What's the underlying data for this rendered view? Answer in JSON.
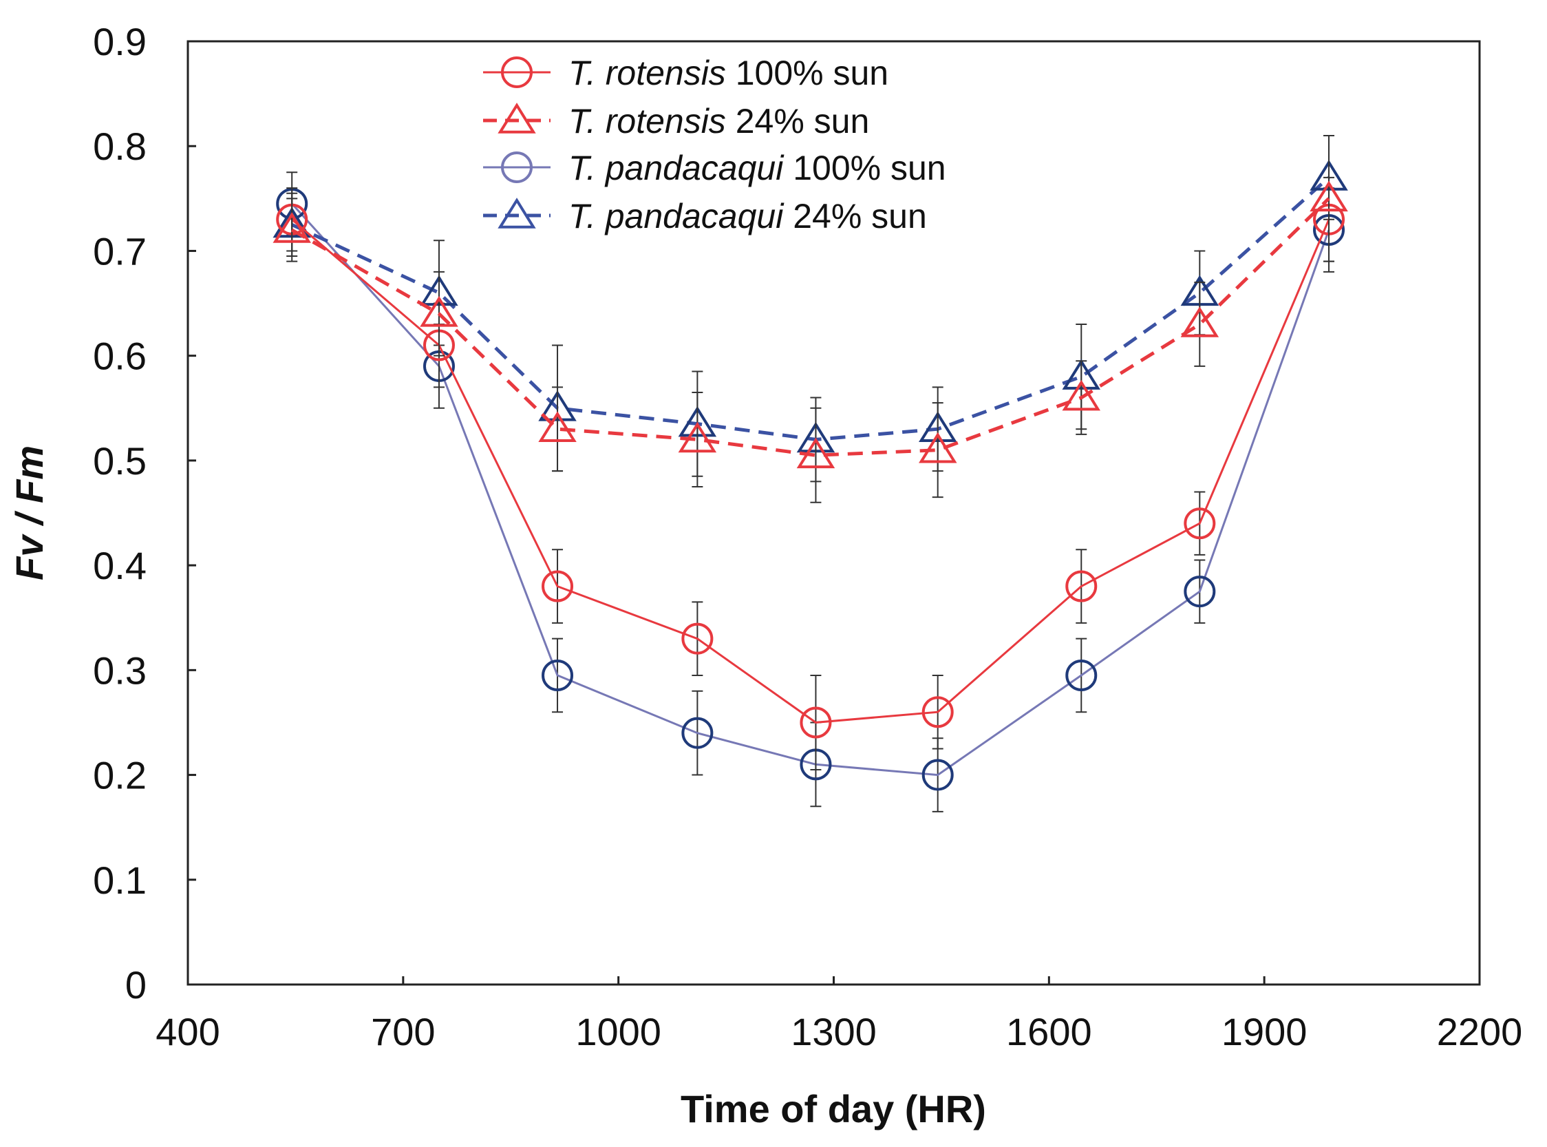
{
  "chart_data": {
    "type": "line",
    "title": "",
    "xlabel": "Time of day (HR)",
    "ylabel": "Fv / Fm",
    "xlim": [
      400,
      2200
    ],
    "ylim": [
      0,
      0.9
    ],
    "x_ticks": [
      "400",
      "700",
      "1000",
      "1300",
      "1600",
      "1900",
      "2200"
    ],
    "y_ticks": [
      "0",
      "0.1",
      "0.2",
      "0.3",
      "0.4",
      "0.5",
      "0.6",
      "0.7",
      "0.8",
      "0.9"
    ],
    "x_tick_values": [
      400,
      700,
      1000,
      1300,
      1600,
      1900,
      2200
    ],
    "y_tick_values": [
      0,
      0.1,
      0.2,
      0.3,
      0.4,
      0.5,
      0.6,
      0.7,
      0.8,
      0.9
    ],
    "grid": false,
    "legend_position": "top-center",
    "x": [
      545,
      750,
      915,
      1110,
      1275,
      1445,
      1645,
      1810,
      1990
    ],
    "series": [
      {
        "name": "T. rotensis 100% sun",
        "species": "T. rotensis",
        "treatment": "100% sun",
        "color": "#e8393f",
        "dash": "solid",
        "marker": "circle",
        "values": [
          0.73,
          0.61,
          0.38,
          0.33,
          0.25,
          0.26,
          0.38,
          0.44,
          0.73
        ],
        "errors": [
          0.03,
          0.04,
          0.035,
          0.035,
          0.045,
          0.035,
          0.035,
          0.03,
          0.04
        ]
      },
      {
        "name": "T. rotensis 24% sun",
        "species": "T. rotensis",
        "treatment": "24% sun",
        "color": "#e8393f",
        "dash": "dashed",
        "marker": "triangle",
        "values": [
          0.72,
          0.64,
          0.53,
          0.52,
          0.505,
          0.51,
          0.56,
          0.63,
          0.75
        ],
        "errors": [
          0.03,
          0.04,
          0.04,
          0.045,
          0.045,
          0.045,
          0.035,
          0.04,
          0.06
        ]
      },
      {
        "name": "T. pandacaqui 100% sun",
        "species": "T. pandacaqui",
        "treatment": "100% sun",
        "color": "#7678b5",
        "marker_color": "#1f3a7a",
        "dash": "solid",
        "marker": "circle",
        "values": [
          0.745,
          0.59,
          0.295,
          0.24,
          0.21,
          0.2,
          0.295,
          0.375,
          0.72
        ],
        "errors": [
          0.03,
          0.04,
          0.035,
          0.04,
          0.04,
          0.035,
          0.035,
          0.03,
          0.04
        ]
      },
      {
        "name": "T. pandacaqui 24% sun",
        "species": "T. pandacaqui",
        "treatment": "24% sun",
        "color": "#3b52a3",
        "marker_color": "#1f3a7a",
        "dash": "dashed",
        "marker": "triangle",
        "values": [
          0.725,
          0.66,
          0.55,
          0.535,
          0.52,
          0.53,
          0.58,
          0.66,
          0.77
        ],
        "errors": [
          0.03,
          0.05,
          0.06,
          0.05,
          0.04,
          0.04,
          0.05,
          0.04,
          0.04
        ]
      }
    ]
  }
}
